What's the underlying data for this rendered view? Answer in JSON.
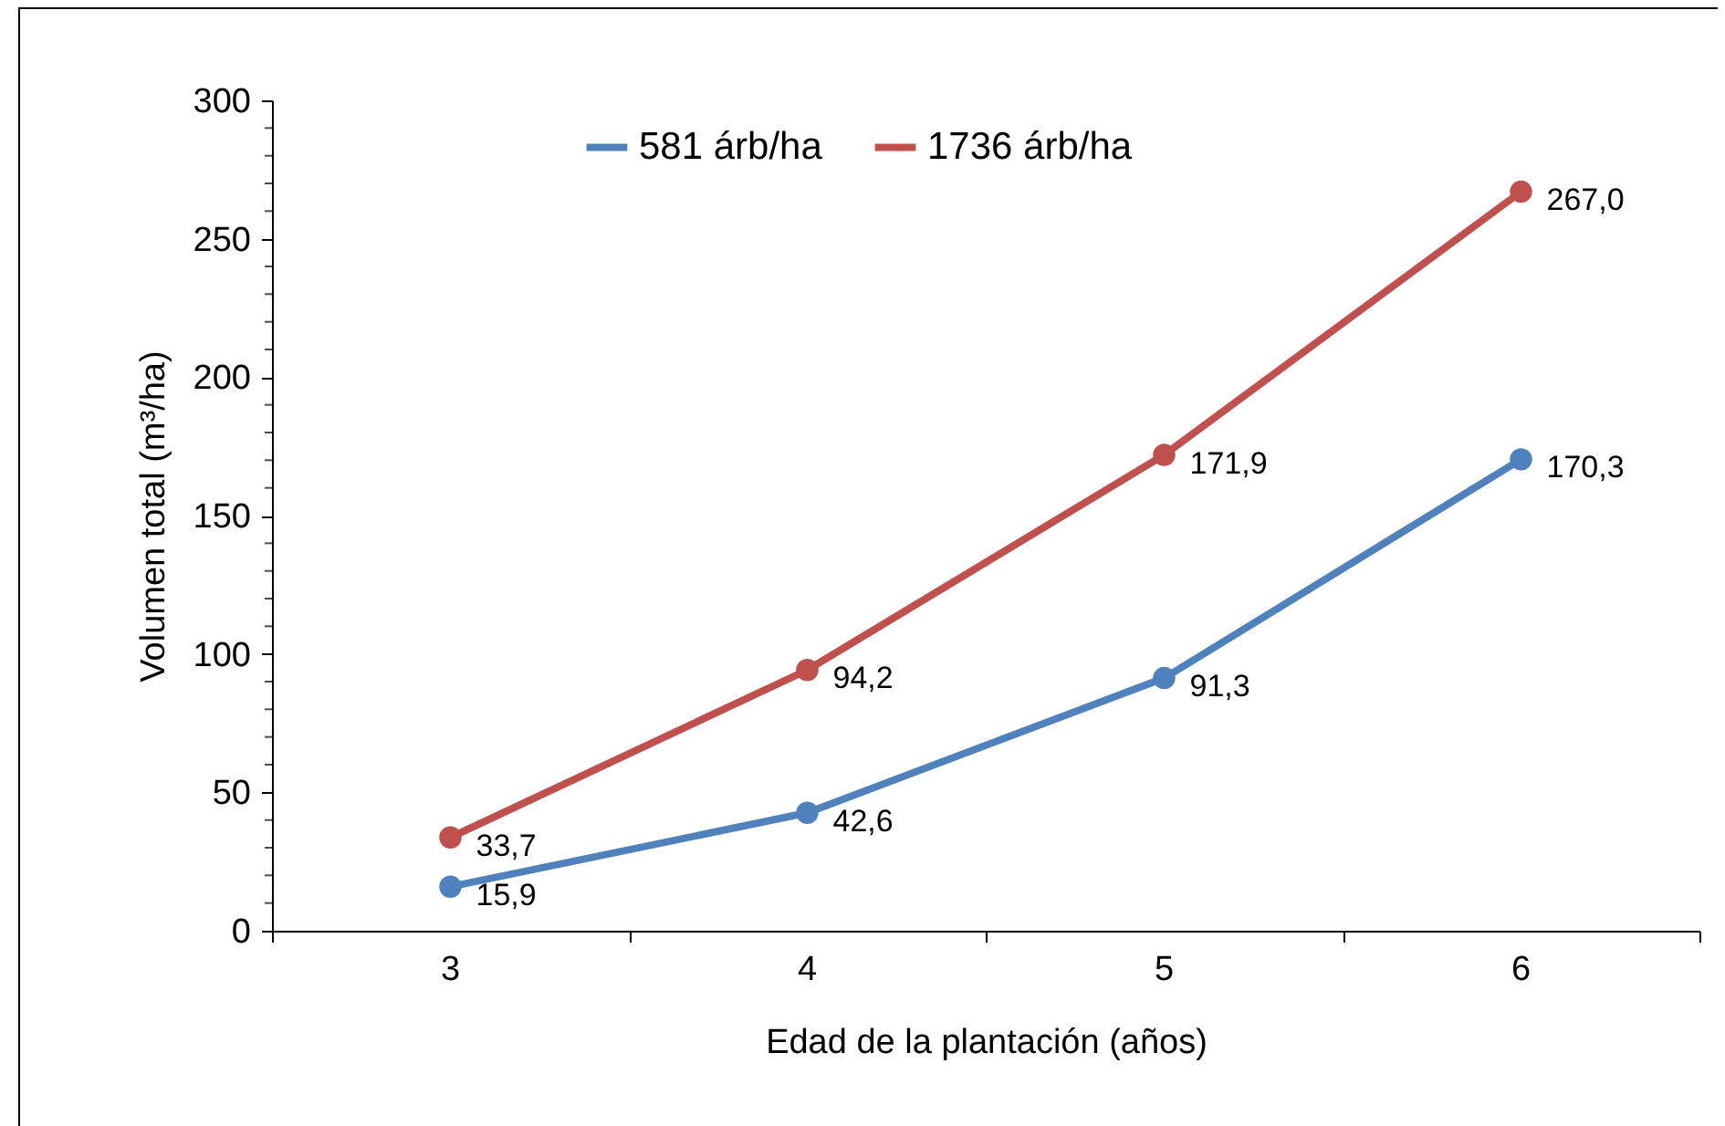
{
  "chart_data": {
    "type": "line",
    "xlabel": "Edad de la plantación (años)",
    "ylabel": "Volumen total (m³/ha)",
    "categories": [
      "3",
      "4",
      "5",
      "6"
    ],
    "ylim": [
      0,
      300
    ],
    "yticks": [
      0,
      50,
      100,
      150,
      200,
      250,
      300
    ],
    "grid": false,
    "legend": "top",
    "marker": "circle",
    "line_style": "solid",
    "series": [
      {
        "name": "581 árb/ha",
        "color": "#4f81bd",
        "values": [
          15.9,
          42.6,
          91.3,
          170.3
        ],
        "value_labels": [
          "15,9",
          "42,6",
          "91,3",
          "170,3"
        ]
      },
      {
        "name": "1736 árb/ha",
        "color": "#c0504d",
        "values": [
          33.7,
          94.2,
          171.9,
          267.0
        ],
        "value_labels": [
          "33,7",
          "94,2",
          "171,9",
          "267,0"
        ]
      }
    ]
  }
}
